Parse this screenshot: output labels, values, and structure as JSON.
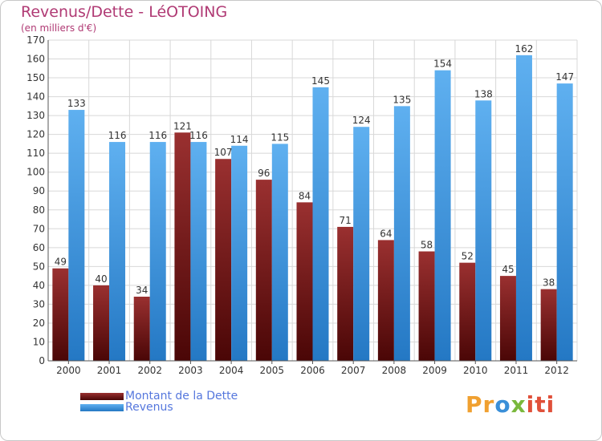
{
  "header": {
    "title": "Revenus/Dette - LéOTOING",
    "subtitle": "(en milliers d'€)"
  },
  "chart_data": {
    "type": "bar",
    "categories": [
      "2000",
      "2001",
      "2002",
      "2003",
      "2004",
      "2005",
      "2006",
      "2007",
      "2008",
      "2009",
      "2010",
      "2011",
      "2012"
    ],
    "series": [
      {
        "name": "Montant de la Dette",
        "color": "#7a1a1a",
        "values": [
          49,
          40,
          34,
          121,
          107,
          96,
          84,
          71,
          64,
          58,
          52,
          45,
          38
        ]
      },
      {
        "name": "Revenus",
        "color": "#3d95df",
        "values": [
          133,
          116,
          116,
          116,
          114,
          115,
          145,
          124,
          135,
          154,
          138,
          162,
          147
        ]
      }
    ],
    "ylim": [
      0,
      170
    ],
    "yticks": [
      0,
      10,
      20,
      30,
      40,
      50,
      60,
      70,
      80,
      90,
      100,
      110,
      120,
      130,
      140,
      150,
      160,
      170
    ],
    "grid": true,
    "legend_position": "bottom-left"
  },
  "logo": {
    "parts": [
      "Pr",
      "o",
      "x",
      "iti"
    ]
  }
}
